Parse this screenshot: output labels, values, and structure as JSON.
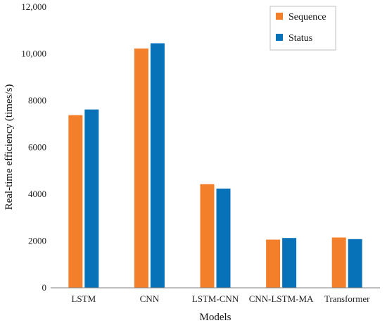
{
  "chart_data": {
    "type": "bar",
    "categories": [
      "LSTM",
      "CNN",
      "LSTM-CNN",
      "CNN-LSTM-MA",
      "Transformer"
    ],
    "series": [
      {
        "name": "Sequence",
        "color": "#f47f2a",
        "values": [
          7380,
          10230,
          4430,
          2060,
          2150
        ]
      },
      {
        "name": "Status",
        "color": "#0872b8",
        "values": [
          7620,
          10450,
          4240,
          2130,
          2080
        ]
      }
    ],
    "title": "",
    "xlabel": "Models",
    "ylabel": "Real-time efficiency (times/s)",
    "ylim": [
      0,
      12000
    ],
    "yticks": [
      {
        "value": 0,
        "label": "0"
      },
      {
        "value": 2000,
        "label": "2000"
      },
      {
        "value": 4000,
        "label": "4000"
      },
      {
        "value": 6000,
        "label": "6000"
      },
      {
        "value": 8000,
        "label": "8000"
      },
      {
        "value": 10000,
        "label": "10,000"
      },
      {
        "value": 12000,
        "label": "12,000"
      }
    ],
    "grid": false,
    "legend_position": "top-right"
  }
}
